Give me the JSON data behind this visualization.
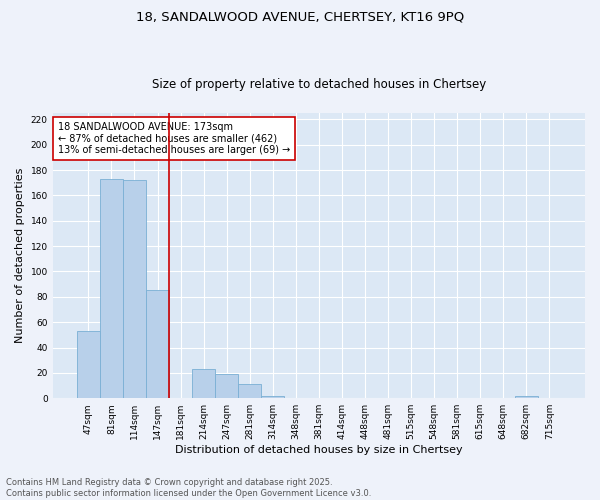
{
  "title1": "18, SANDALWOOD AVENUE, CHERTSEY, KT16 9PQ",
  "title2": "Size of property relative to detached houses in Chertsey",
  "xlabel": "Distribution of detached houses by size in Chertsey",
  "ylabel": "Number of detached properties",
  "categories": [
    "47sqm",
    "81sqm",
    "114sqm",
    "147sqm",
    "181sqm",
    "214sqm",
    "247sqm",
    "281sqm",
    "314sqm",
    "348sqm",
    "381sqm",
    "414sqm",
    "448sqm",
    "481sqm",
    "515sqm",
    "548sqm",
    "581sqm",
    "615sqm",
    "648sqm",
    "682sqm",
    "715sqm"
  ],
  "values": [
    53,
    173,
    172,
    85,
    0,
    23,
    19,
    11,
    2,
    0,
    0,
    0,
    0,
    0,
    0,
    0,
    0,
    0,
    0,
    2,
    0
  ],
  "bar_color": "#b8d0ea",
  "bar_edge_color": "#7aafd4",
  "reference_line_index": 4,
  "reference_line_color": "#cc0000",
  "annotation_text": "18 SANDALWOOD AVENUE: 173sqm\n← 87% of detached houses are smaller (462)\n13% of semi-detached houses are larger (69) →",
  "annotation_box_color": "#ffffff",
  "annotation_box_edge_color": "#cc0000",
  "ylim": [
    0,
    225
  ],
  "yticks": [
    0,
    20,
    40,
    60,
    80,
    100,
    120,
    140,
    160,
    180,
    200,
    220
  ],
  "footer": "Contains HM Land Registry data © Crown copyright and database right 2025.\nContains public sector information licensed under the Open Government Licence v3.0.",
  "bg_color": "#eef2fa",
  "plot_bg_color": "#dce8f5",
  "grid_color": "#ffffff",
  "title1_fontsize": 9.5,
  "title2_fontsize": 8.5,
  "xlabel_fontsize": 8,
  "ylabel_fontsize": 8,
  "tick_fontsize": 6.5,
  "annotation_fontsize": 7,
  "footer_fontsize": 6
}
